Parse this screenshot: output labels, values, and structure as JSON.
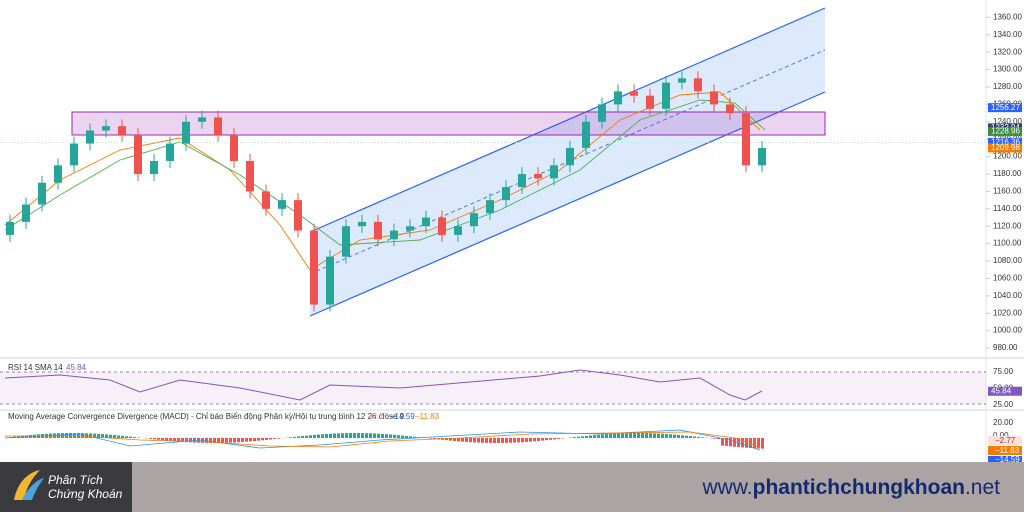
{
  "chart_data": {
    "type": "candlestick",
    "open": [
      1110,
      1125,
      1145,
      1170,
      1190,
      1215,
      1230,
      1235,
      1225,
      1180,
      1195,
      1215,
      1240,
      1245,
      1225,
      1195,
      1160,
      1140,
      1150,
      1115,
      1030,
      1085,
      1120,
      1125,
      1105,
      1115,
      1120,
      1130,
      1110,
      1120,
      1135,
      1150,
      1165,
      1180,
      1175,
      1190,
      1210,
      1240,
      1260,
      1275,
      1270,
      1255,
      1285,
      1290,
      1275,
      1260,
      1250,
      1190
    ],
    "high": [
      1133,
      1153,
      1178,
      1198,
      1223,
      1238,
      1243,
      1243,
      1233,
      1203,
      1223,
      1248,
      1253,
      1253,
      1233,
      1203,
      1168,
      1158,
      1158,
      1123,
      1093,
      1128,
      1133,
      1133,
      1123,
      1128,
      1138,
      1138,
      1128,
      1143,
      1158,
      1173,
      1188,
      1188,
      1198,
      1218,
      1248,
      1268,
      1283,
      1283,
      1278,
      1293,
      1298,
      1298,
      1283,
      1268,
      1258,
      1218
    ],
    "low": [
      1102,
      1117,
      1137,
      1162,
      1182,
      1207,
      1222,
      1217,
      1172,
      1172,
      1187,
      1207,
      1232,
      1217,
      1187,
      1152,
      1132,
      1132,
      1107,
      1022,
      1022,
      1077,
      1112,
      1097,
      1097,
      1107,
      1112,
      1102,
      1102,
      1112,
      1127,
      1142,
      1157,
      1167,
      1167,
      1182,
      1202,
      1232,
      1252,
      1262,
      1247,
      1247,
      1277,
      1267,
      1252,
      1242,
      1182,
      1182
    ],
    "close": [
      1125,
      1145,
      1170,
      1190,
      1215,
      1230,
      1235,
      1225,
      1180,
      1195,
      1215,
      1240,
      1245,
      1225,
      1195,
      1160,
      1140,
      1150,
      1115,
      1030,
      1085,
      1120,
      1125,
      1105,
      1115,
      1120,
      1130,
      1110,
      1120,
      1135,
      1150,
      1165,
      1180,
      1175,
      1190,
      1210,
      1240,
      1260,
      1275,
      1270,
      1255,
      1285,
      1290,
      1275,
      1260,
      1250,
      1190,
      1210
    ],
    "up_color": "#26a69a",
    "down_color": "#ef5350",
    "ylim": [
      972,
      1380
    ],
    "yticks": [
      {
        "value": 980,
        "label": "980.00"
      },
      {
        "value": 1000,
        "label": "1000.00"
      },
      {
        "value": 1020,
        "label": "1020.00"
      },
      {
        "value": 1040,
        "label": "1040.00"
      },
      {
        "value": 1060,
        "label": "1060.00"
      },
      {
        "value": 1080,
        "label": "1080.00"
      },
      {
        "value": 1100,
        "label": "1100.00"
      },
      {
        "value": 1120,
        "label": "1120.00"
      },
      {
        "value": 1140,
        "label": "1140.00"
      },
      {
        "value": 1160,
        "label": "1160.00"
      },
      {
        "value": 1180,
        "label": "1180.00"
      },
      {
        "value": 1200,
        "label": "1200.00"
      },
      {
        "value": 1220,
        "label": "1220.00"
      },
      {
        "value": 1240,
        "label": "1240.00"
      },
      {
        "value": 1260,
        "label": "1260.00"
      },
      {
        "value": 1280,
        "label": "1280.00"
      },
      {
        "value": 1300,
        "label": "1300.00"
      },
      {
        "value": 1320,
        "label": "1320.00"
      },
      {
        "value": 1340,
        "label": "1340.00"
      },
      {
        "value": 1360,
        "label": "1360.00"
      }
    ],
    "price_labels": [
      {
        "value": 1256.27,
        "label": "1256.27",
        "color": "#2962ff"
      },
      {
        "value": 1232.94,
        "label": "1232.94",
        "color": "#2a3f6a"
      },
      {
        "value": 1228.96,
        "label": "1228.96",
        "color": "#388e3c"
      },
      {
        "value": 1216.36,
        "label": "1216.36",
        "color": "#2962ff"
      },
      {
        "value": 1209.98,
        "label": "1209.98",
        "color": "#f57c00"
      }
    ],
    "rsi": {
      "title": "RSI 14 SMA 14",
      "value_label": "45.84",
      "value": 45.84,
      "ylim": [
        15,
        85
      ],
      "yticks": [
        {
          "value": 75,
          "label": "75.00"
        },
        {
          "value": 50,
          "label": "50.00"
        },
        {
          "value": 25,
          "label": "25.00"
        }
      ]
    },
    "macd": {
      "title": "Moving Average Convergence Divergence (MACD) - Chỉ báo Biến động Phân kỳ/Hội tụ trung bình 12 26 close 9",
      "values": [
        "−2.77",
        "−14.59",
        "−11.83"
      ],
      "axis_labels": [
        "20.00",
        "0.00"
      ],
      "right_labels": [
        "−2.77",
        "−11.83",
        "−14.59"
      ]
    }
  },
  "footer": {
    "brand": [
      "Phân Tích",
      "Chứng Khoán"
    ],
    "url_prefix": "www.",
    "url_main": "phantichchungkhoan",
    "url_suffix": ".net"
  }
}
